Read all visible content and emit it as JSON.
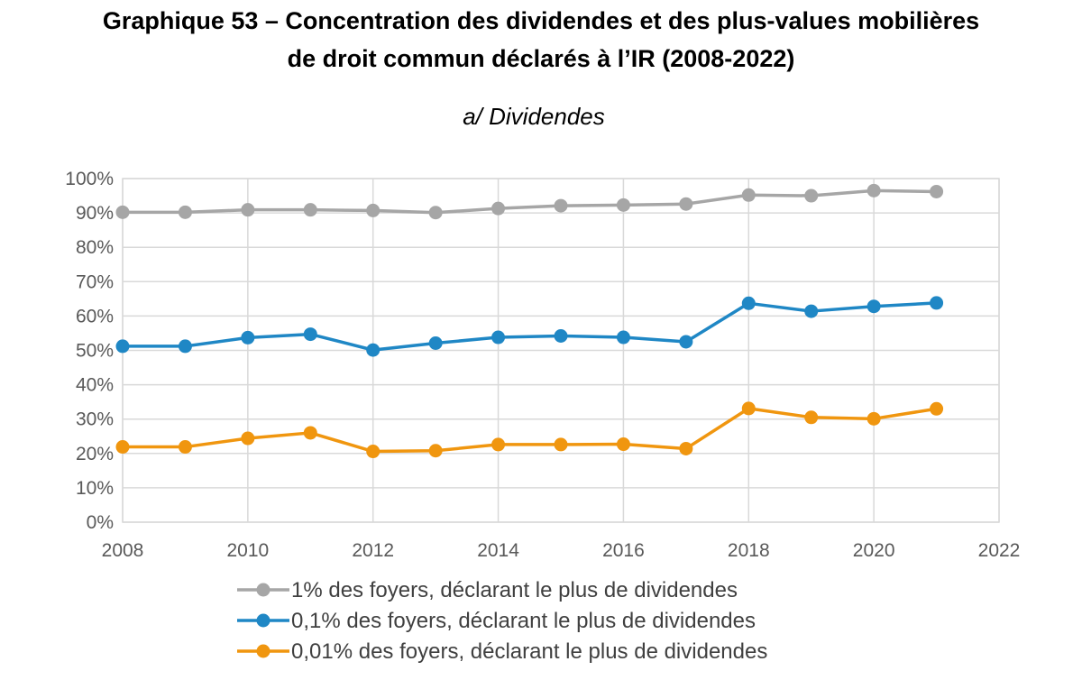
{
  "title_line1": "Graphique 53 – Concentration des dividendes et des plus-values mobilières",
  "title_line2": "de droit commun déclarés à l’IR (2008-2022)",
  "subtitle": "a/ Dividendes",
  "chart_data": {
    "type": "line",
    "x": [
      2008,
      2009,
      2010,
      2011,
      2012,
      2013,
      2014,
      2015,
      2016,
      2017,
      2018,
      2019,
      2020,
      2021
    ],
    "xlim": [
      2008,
      2022
    ],
    "xticks": [
      "2008",
      "2010",
      "2012",
      "2014",
      "2016",
      "2018",
      "2020",
      "2022"
    ],
    "ylim": [
      0,
      100
    ],
    "yticks": [
      "0%",
      "10%",
      "20%",
      "30%",
      "40%",
      "50%",
      "60%",
      "70%",
      "80%",
      "90%",
      "100%"
    ],
    "grid": true,
    "legend_position": "bottom",
    "series": [
      {
        "name": "1% des foyers, déclarant le plus de dividendes",
        "color": "#a6a6a6",
        "values": [
          90.2,
          90.2,
          90.9,
          90.9,
          90.7,
          90.1,
          91.3,
          92.1,
          92.3,
          92.6,
          95.2,
          95.0,
          96.5,
          96.2
        ]
      },
      {
        "name": "0,1% des foyers, déclarant le plus de dividendes",
        "color": "#1f87c5",
        "values": [
          51.2,
          51.2,
          53.7,
          54.7,
          50.1,
          52.1,
          53.8,
          54.2,
          53.8,
          52.5,
          63.7,
          61.4,
          62.8,
          63.8
        ]
      },
      {
        "name": "0,01% des foyers, déclarant le plus de dividendes",
        "color": "#f0960f",
        "values": [
          21.9,
          21.9,
          24.4,
          26.0,
          20.6,
          20.8,
          22.6,
          22.6,
          22.7,
          21.4,
          33.1,
          30.5,
          30.1,
          33.0
        ]
      }
    ]
  }
}
